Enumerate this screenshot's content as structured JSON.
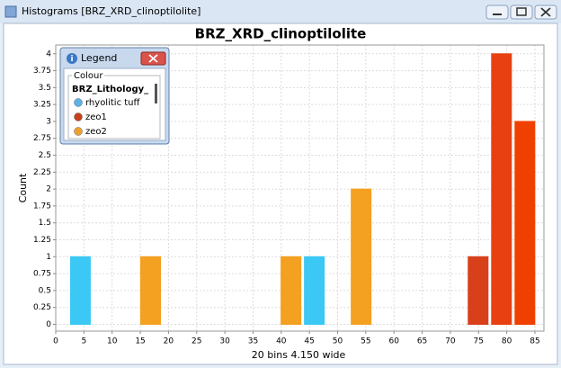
{
  "window": {
    "title": "Histograms [BRZ_XRD_clinoptilolite]"
  },
  "chart_data": {
    "type": "histogram",
    "title": "BRZ_XRD_clinoptilolite",
    "x_label": "20 bins 4.150 wide",
    "y_label": "Count",
    "bins": [
      2.3,
      6.45,
      10.6,
      14.75,
      18.9,
      23.05,
      27.2,
      31.35,
      35.5,
      39.65,
      43.8,
      47.95,
      52.1,
      56.25,
      60.4,
      64.55,
      68.7,
      72.85,
      77.0,
      81.15,
      85.3
    ],
    "counts": [
      1,
      0,
      0,
      1,
      0,
      0,
      0,
      0,
      0,
      1,
      1,
      0,
      2,
      0,
      0,
      0,
      0,
      1,
      4,
      3
    ],
    "bin_colors": [
      "#3cc8f4",
      null,
      null,
      "#f4a020",
      null,
      null,
      null,
      null,
      null,
      "#f4a020",
      "#3cc8f4",
      null,
      "#f4a020",
      null,
      null,
      null,
      null,
      "#d8401a",
      "#e84010",
      "#f04000"
    ],
    "xlim": [
      0,
      86.6
    ],
    "ylim": [
      -0.1,
      4.13
    ],
    "xticks": [
      0,
      5,
      10,
      15,
      20,
      25,
      30,
      35,
      40,
      45,
      50,
      55,
      60,
      65,
      70,
      75,
      80,
      85
    ],
    "yticks": [
      0,
      0.25,
      0.5,
      0.75,
      1,
      1.25,
      1.5,
      1.75,
      2,
      2.25,
      2.5,
      2.75,
      3,
      3.25,
      3.5,
      3.75,
      4
    ],
    "grid": true
  },
  "legend_window": {
    "title": "Legend",
    "group": "Colour",
    "field": "BRZ_Lithology_",
    "items": [
      {
        "name": "rhyolitic tuff",
        "color": "#5ab4e8"
      },
      {
        "name": "zeo1",
        "color": "#c8401c"
      },
      {
        "name": "zeo2",
        "color": "#f0a030"
      }
    ]
  }
}
